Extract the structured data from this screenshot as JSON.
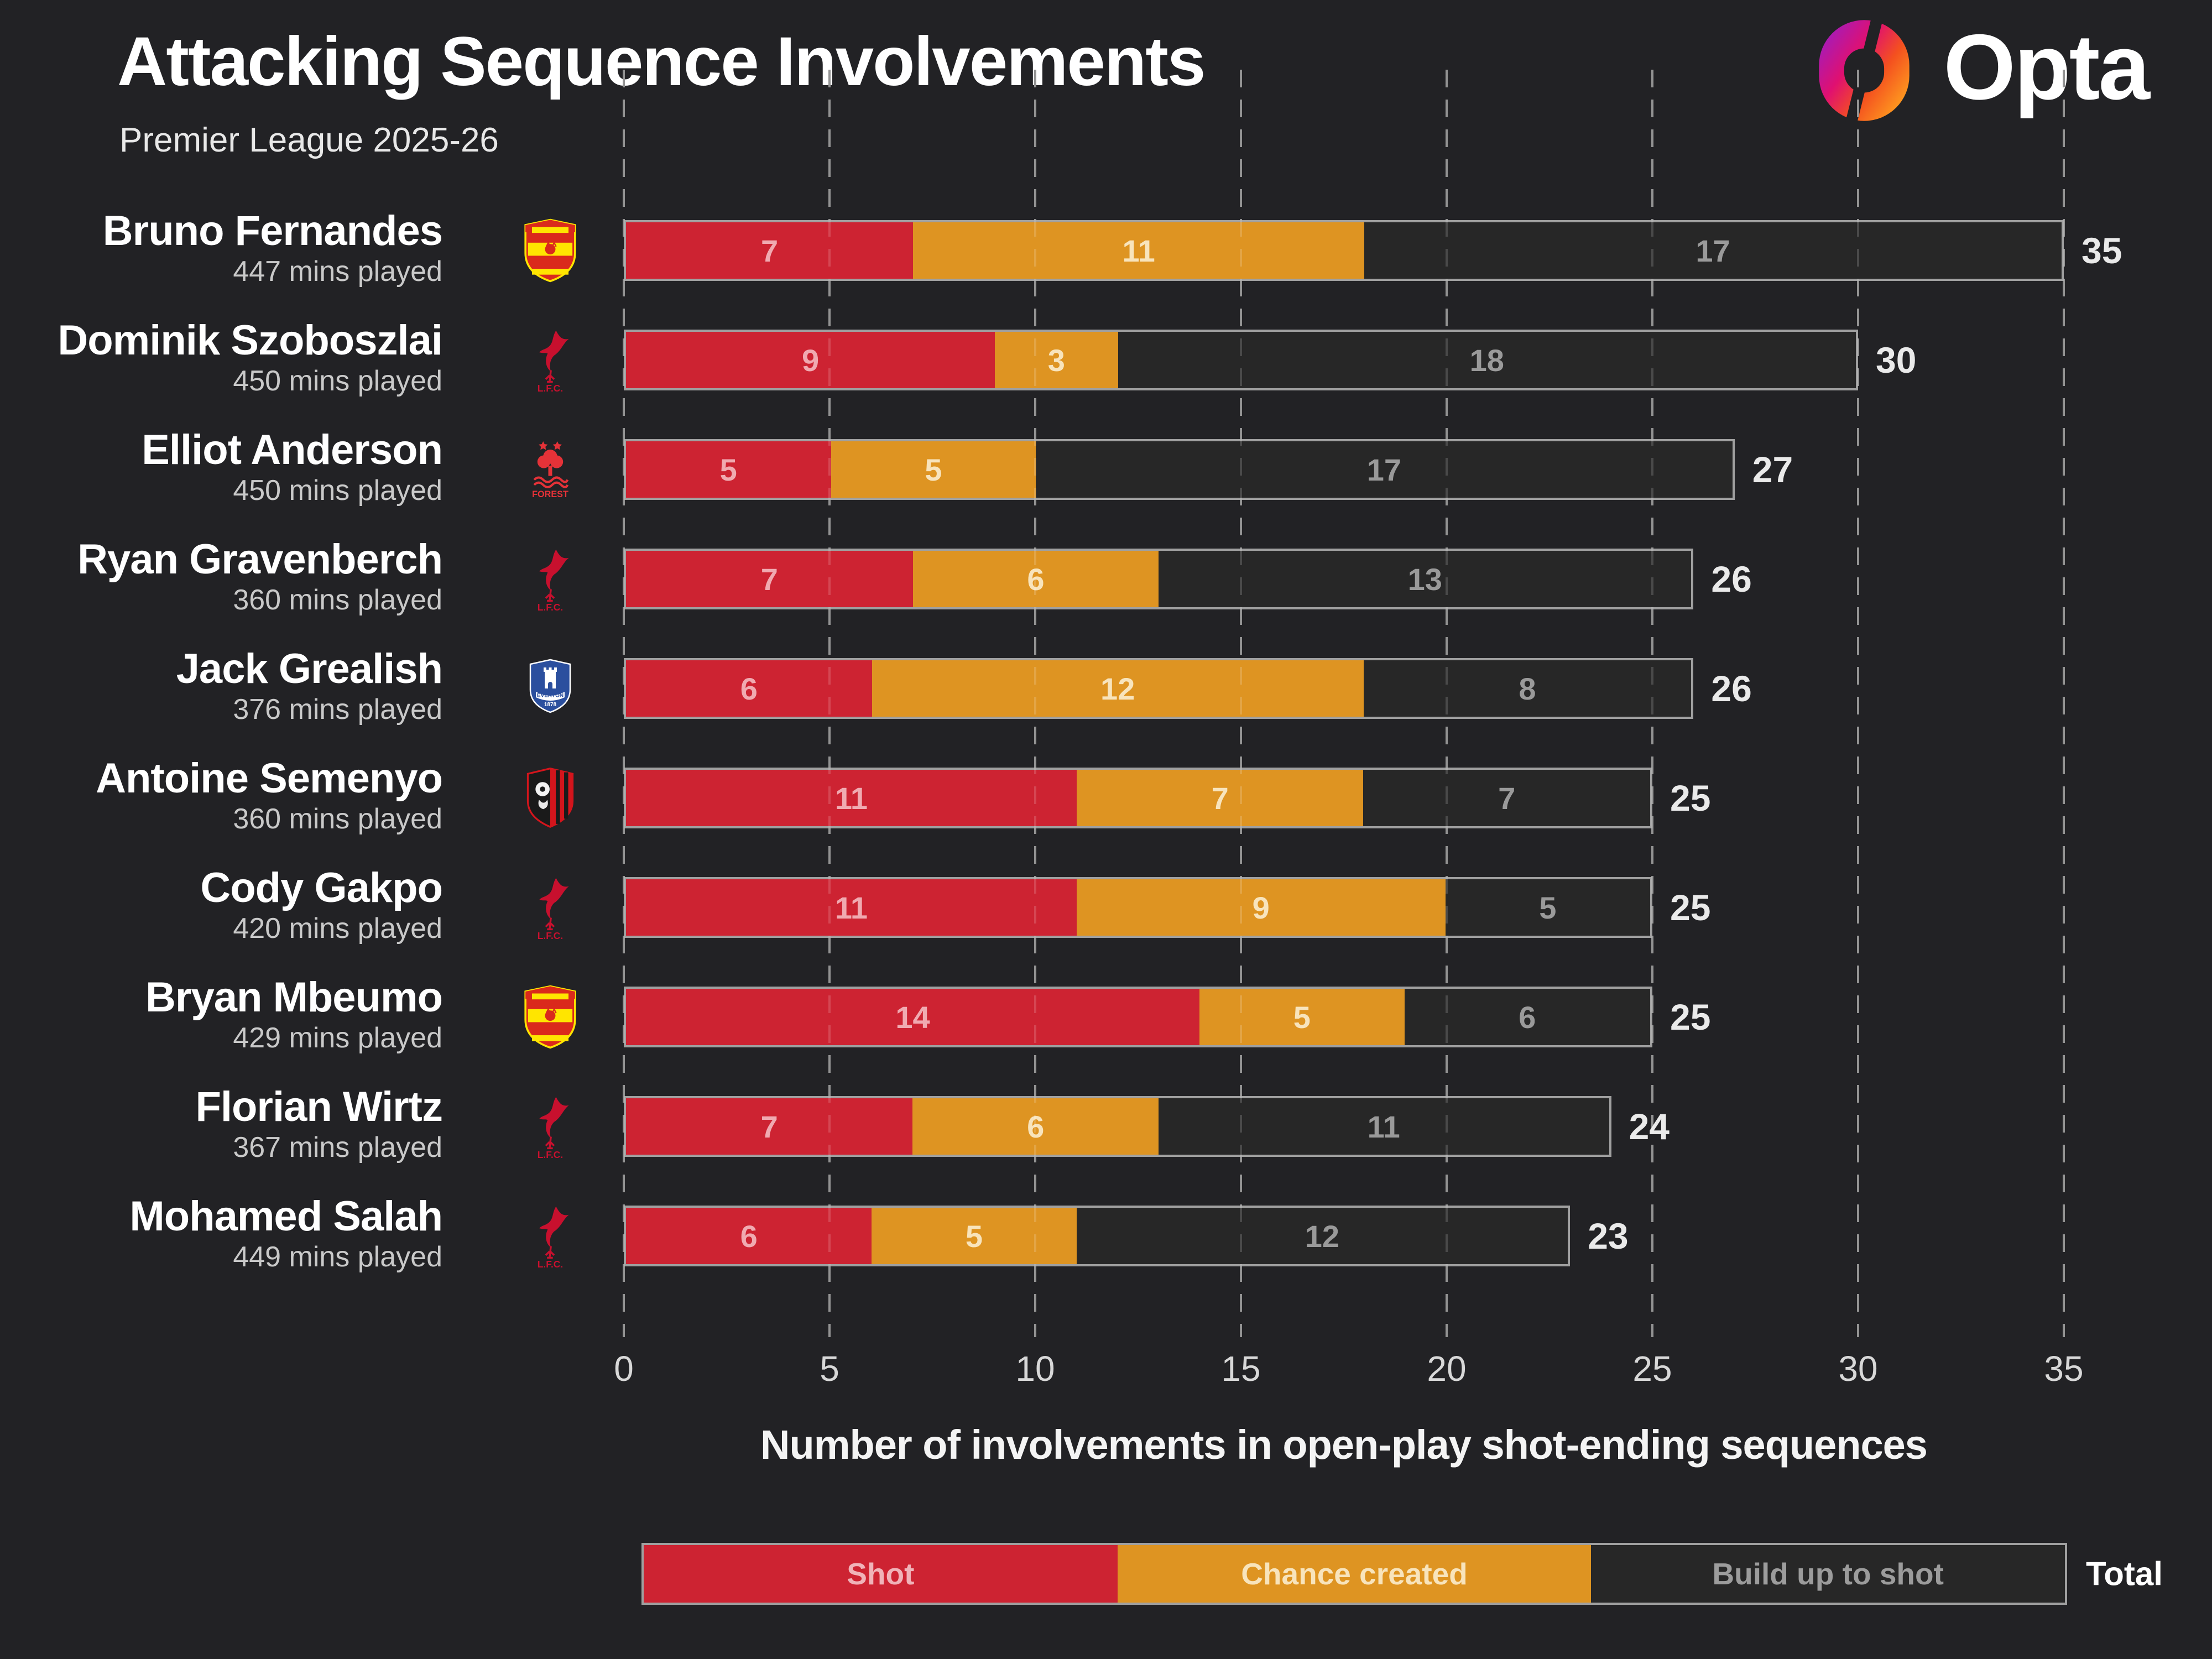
{
  "header": {
    "title": "Attacking Sequence Involvements",
    "subtitle": "Premier League 2025-26",
    "brand": "Opta"
  },
  "axis": {
    "min": 0,
    "max": 35,
    "ticks": [
      0,
      5,
      10,
      15,
      20,
      25,
      30,
      35
    ],
    "title": "Number of involvements in open-play shot-ending sequences"
  },
  "legend": {
    "shot": "Shot",
    "chance": "Chance created",
    "build": "Build up to shot",
    "total": "Total"
  },
  "colors": {
    "background": "#222225",
    "shot": "#cd2332",
    "chance": "#de9422",
    "build": "#272727",
    "bar_border": "#a0a0a0",
    "gridline": "#7e7e7e",
    "total_text": "#eaeaea",
    "opta_gradient": [
      "#8f1fd4",
      "#e01070",
      "#ff8a1e"
    ]
  },
  "rows": [
    {
      "name": "Bruno Fernandes",
      "mins": "447 mins played",
      "badge": "man-utd",
      "shot": 7,
      "chance": 11,
      "build": 17,
      "total": 35
    },
    {
      "name": "Dominik Szoboszlai",
      "mins": "450 mins played",
      "badge": "liverpool",
      "shot": 9,
      "chance": 3,
      "build": 18,
      "total": 30
    },
    {
      "name": "Elliot Anderson",
      "mins": "450 mins played",
      "badge": "forest",
      "shot": 5,
      "chance": 5,
      "build": 17,
      "total": 27
    },
    {
      "name": "Ryan Gravenberch",
      "mins": "360 mins played",
      "badge": "liverpool",
      "shot": 7,
      "chance": 6,
      "build": 13,
      "total": 26
    },
    {
      "name": "Jack Grealish",
      "mins": "376 mins played",
      "badge": "everton",
      "shot": 6,
      "chance": 12,
      "build": 8,
      "total": 26
    },
    {
      "name": "Antoine Semenyo",
      "mins": "360 mins played",
      "badge": "bournemouth",
      "shot": 11,
      "chance": 7,
      "build": 7,
      "total": 25
    },
    {
      "name": "Cody Gakpo",
      "mins": "420 mins played",
      "badge": "liverpool",
      "shot": 11,
      "chance": 9,
      "build": 5,
      "total": 25
    },
    {
      "name": "Bryan Mbeumo",
      "mins": "429 mins played",
      "badge": "man-utd",
      "shot": 14,
      "chance": 5,
      "build": 6,
      "total": 25
    },
    {
      "name": "Florian Wirtz",
      "mins": "367 mins played",
      "badge": "liverpool",
      "shot": 7,
      "chance": 6,
      "build": 11,
      "total": 24
    },
    {
      "name": "Mohamed Salah",
      "mins": "449 mins played",
      "badge": "liverpool",
      "shot": 6,
      "chance": 5,
      "build": 12,
      "total": 23
    }
  ],
  "chart_data": {
    "type": "bar",
    "orientation": "horizontal",
    "stacked": true,
    "title": "Attacking Sequence Involvements",
    "subtitle": "Premier League 2025-26",
    "xlabel": "Number of involvements in open-play shot-ending sequences",
    "xlim": [
      0,
      35
    ],
    "xticks": [
      0,
      5,
      10,
      15,
      20,
      25,
      30,
      35
    ],
    "grid": "dashed-vertical",
    "legend_position": "bottom",
    "categories": [
      "Bruno Fernandes",
      "Dominik Szoboszlai",
      "Elliot Anderson",
      "Ryan Gravenberch",
      "Jack Grealish",
      "Antoine Semenyo",
      "Cody Gakpo",
      "Bryan Mbeumo",
      "Florian Wirtz",
      "Mohamed Salah"
    ],
    "minutes_played": [
      447,
      450,
      450,
      360,
      376,
      360,
      420,
      429,
      367,
      449
    ],
    "teams": [
      "Manchester United",
      "Liverpool",
      "Nottingham Forest",
      "Liverpool",
      "Everton",
      "Bournemouth",
      "Liverpool",
      "Manchester United",
      "Liverpool",
      "Liverpool"
    ],
    "series": [
      {
        "name": "Shot",
        "color": "#cd2332",
        "values": [
          7,
          9,
          5,
          7,
          6,
          11,
          11,
          14,
          7,
          6
        ]
      },
      {
        "name": "Chance created",
        "color": "#de9422",
        "values": [
          11,
          3,
          5,
          6,
          12,
          7,
          9,
          5,
          6,
          5
        ]
      },
      {
        "name": "Build up to shot",
        "color": "#272727",
        "values": [
          17,
          18,
          17,
          13,
          8,
          7,
          5,
          6,
          11,
          12
        ]
      }
    ],
    "totals": [
      35,
      30,
      27,
      26,
      26,
      25,
      25,
      25,
      24,
      23
    ]
  }
}
